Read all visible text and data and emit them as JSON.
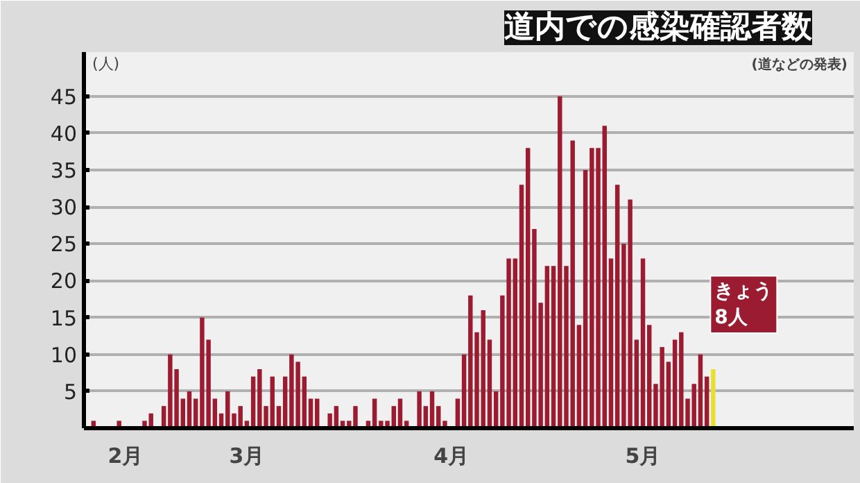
{
  "chart_data": {
    "type": "bar",
    "title": "道内での感染確認者数",
    "subtitle": "(道などの発表)",
    "ylabel": "(人)",
    "categories": [
      null,
      null,
      null,
      null,
      null,
      "2月",
      null,
      null,
      null,
      null,
      null,
      null,
      null,
      null,
      null,
      null,
      null,
      null,
      null,
      null,
      null,
      null,
      null,
      null,
      "3月",
      null,
      null,
      null,
      null,
      null,
      null,
      null,
      null,
      null,
      null,
      null,
      null,
      null,
      null,
      null,
      null,
      null,
      null,
      null,
      null,
      null,
      null,
      null,
      null,
      null,
      null,
      null,
      null,
      null,
      null,
      null,
      "4月",
      null,
      null,
      null,
      null,
      null,
      null,
      null,
      null,
      null,
      null,
      null,
      null,
      null,
      null,
      null,
      null,
      null,
      null,
      null,
      null,
      null,
      null,
      null,
      null,
      null,
      null,
      null,
      null,
      null,
      "5月",
      null,
      null,
      null,
      null,
      null,
      null,
      null,
      null,
      null,
      null,
      null
    ],
    "values": [
      1,
      0,
      0,
      0,
      1,
      0,
      0,
      0,
      1,
      2,
      0,
      3,
      10,
      8,
      4,
      5,
      4,
      15,
      12,
      4,
      2,
      5,
      2,
      3,
      1,
      7,
      8,
      3,
      7,
      3,
      7,
      10,
      9,
      7,
      4,
      4,
      0,
      2,
      3,
      1,
      1,
      3,
      0,
      1,
      4,
      1,
      1,
      3,
      4,
      1,
      0,
      5,
      3,
      5,
      3,
      1,
      0,
      4,
      10,
      18,
      13,
      16,
      12,
      5,
      18,
      23,
      23,
      33,
      38,
      27,
      17,
      22,
      22,
      45,
      22,
      39,
      14,
      35,
      38,
      38,
      41,
      23,
      33,
      25,
      31,
      12,
      23,
      14,
      6,
      11,
      9,
      12,
      13,
      4,
      6,
      10,
      7,
      8
    ],
    "colors": [
      "#9b1b30",
      "#9b1b30",
      "#9b1b30",
      "#9b1b30",
      "#9b1b30",
      "#9b1b30",
      "#9b1b30",
      "#9b1b30",
      "#9b1b30",
      "#9b1b30",
      "#9b1b30",
      "#9b1b30",
      "#9b1b30",
      "#9b1b30",
      "#9b1b30",
      "#9b1b30",
      "#9b1b30",
      "#9b1b30",
      "#9b1b30",
      "#9b1b30",
      "#9b1b30",
      "#9b1b30",
      "#9b1b30",
      "#9b1b30",
      "#9b1b30",
      "#9b1b30",
      "#9b1b30",
      "#9b1b30",
      "#9b1b30",
      "#9b1b30",
      "#9b1b30",
      "#9b1b30",
      "#9b1b30",
      "#9b1b30",
      "#9b1b30",
      "#9b1b30",
      "#9b1b30",
      "#9b1b30",
      "#9b1b30",
      "#9b1b30",
      "#9b1b30",
      "#9b1b30",
      "#9b1b30",
      "#9b1b30",
      "#9b1b30",
      "#9b1b30",
      "#9b1b30",
      "#9b1b30",
      "#9b1b30",
      "#9b1b30",
      "#9b1b30",
      "#9b1b30",
      "#9b1b30",
      "#9b1b30",
      "#9b1b30",
      "#9b1b30",
      "#9b1b30",
      "#9b1b30",
      "#9b1b30",
      "#9b1b30",
      "#9b1b30",
      "#9b1b30",
      "#9b1b30",
      "#9b1b30",
      "#9b1b30",
      "#9b1b30",
      "#9b1b30",
      "#9b1b30",
      "#9b1b30",
      "#9b1b30",
      "#9b1b30",
      "#9b1b30",
      "#9b1b30",
      "#9b1b30",
      "#9b1b30",
      "#9b1b30",
      "#9b1b30",
      "#9b1b30",
      "#9b1b30",
      "#9b1b30",
      "#9b1b30",
      "#9b1b30",
      "#9b1b30",
      "#9b1b30",
      "#9b1b30",
      "#9b1b30",
      "#9b1b30",
      "#9b1b30",
      "#9b1b30",
      "#9b1b30",
      "#9b1b30",
      "#9b1b30",
      "#9b1b30",
      "#9b1b30",
      "#9b1b30",
      "#9b1b30",
      "#9b1b30",
      "#e8e030"
    ],
    "annotations": [
      "きょう\n8人"
    ],
    "ylim": [
      0,
      51
    ],
    "yticks": [
      5,
      10,
      15,
      20,
      25,
      30,
      35,
      40,
      45
    ],
    "grid": "y"
  }
}
